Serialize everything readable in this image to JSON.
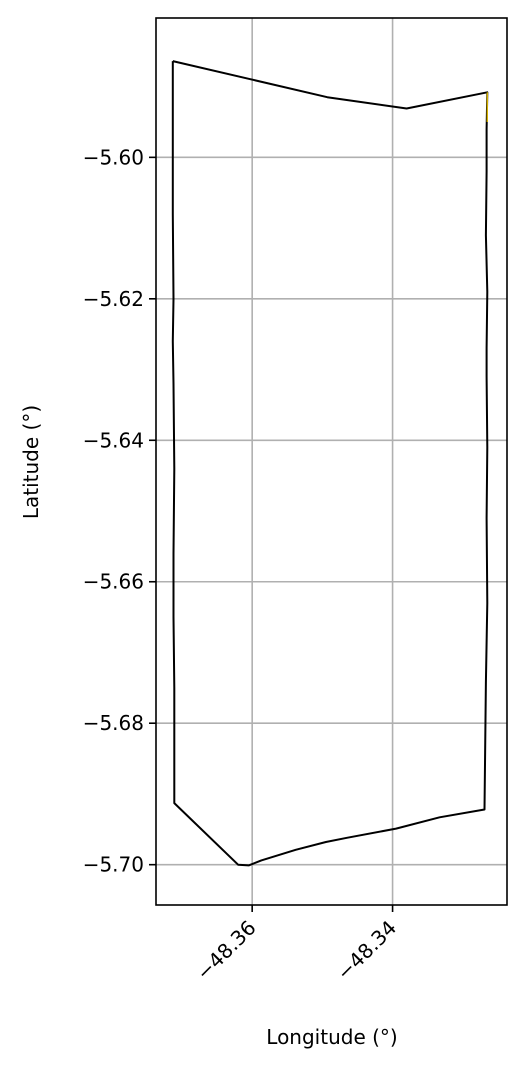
{
  "chart_data": {
    "type": "line",
    "title": "",
    "xlabel": "Longitude (°)",
    "ylabel": "Latitude (°)",
    "xlim": [
      -48.3737,
      -48.3237
    ],
    "ylim": [
      -5.7057,
      -5.5803
    ],
    "grid": true,
    "x_ticks": [
      -48.36,
      -48.34
    ],
    "x_tick_labels": [
      "−48.36",
      "−48.34"
    ],
    "y_ticks": [
      -5.6,
      -5.62,
      -5.64,
      -5.66,
      -5.68,
      -5.7
    ],
    "y_tick_labels": [
      "−5.60",
      "−5.62",
      "−5.64",
      "−5.66",
      "−5.68",
      "−5.70"
    ],
    "series": [
      {
        "color": "#000000",
        "x": [
          -48.3713,
          -48.3605,
          -48.3493,
          -48.338,
          -48.3265,
          -48.3266,
          -48.3266,
          -48.3267,
          -48.3265,
          -48.3266,
          -48.3266,
          -48.3265,
          -48.3266,
          -48.3265,
          -48.3267,
          -48.3269,
          -48.3333,
          -48.3395,
          -48.3465,
          -48.3495,
          -48.3538,
          -48.3587,
          -48.3605,
          -48.362,
          -48.3711,
          -48.3711,
          -48.3712,
          -48.3712,
          -48.3711,
          -48.3712,
          -48.3713,
          -48.3712,
          -48.3713,
          -48.3713
        ],
        "y": [
          -5.5864,
          -5.5889,
          -5.5915,
          -5.5931,
          -5.5908,
          -5.596,
          -5.602,
          -5.611,
          -5.619,
          -5.627,
          -5.631,
          -5.641,
          -5.651,
          -5.663,
          -5.6742,
          -5.6922,
          -5.6933,
          -5.6949,
          -5.6962,
          -5.6968,
          -5.6979,
          -5.6994,
          -5.7001,
          -5.7,
          -5.6913,
          -5.675,
          -5.665,
          -5.656,
          -5.644,
          -5.632,
          -5.626,
          -5.62,
          -5.608,
          -5.5864
        ]
      },
      {
        "color": "#d4b000",
        "x": [
          -48.3265,
          -48.3265
        ],
        "y": [
          -5.5908,
          -5.595
        ]
      }
    ]
  }
}
